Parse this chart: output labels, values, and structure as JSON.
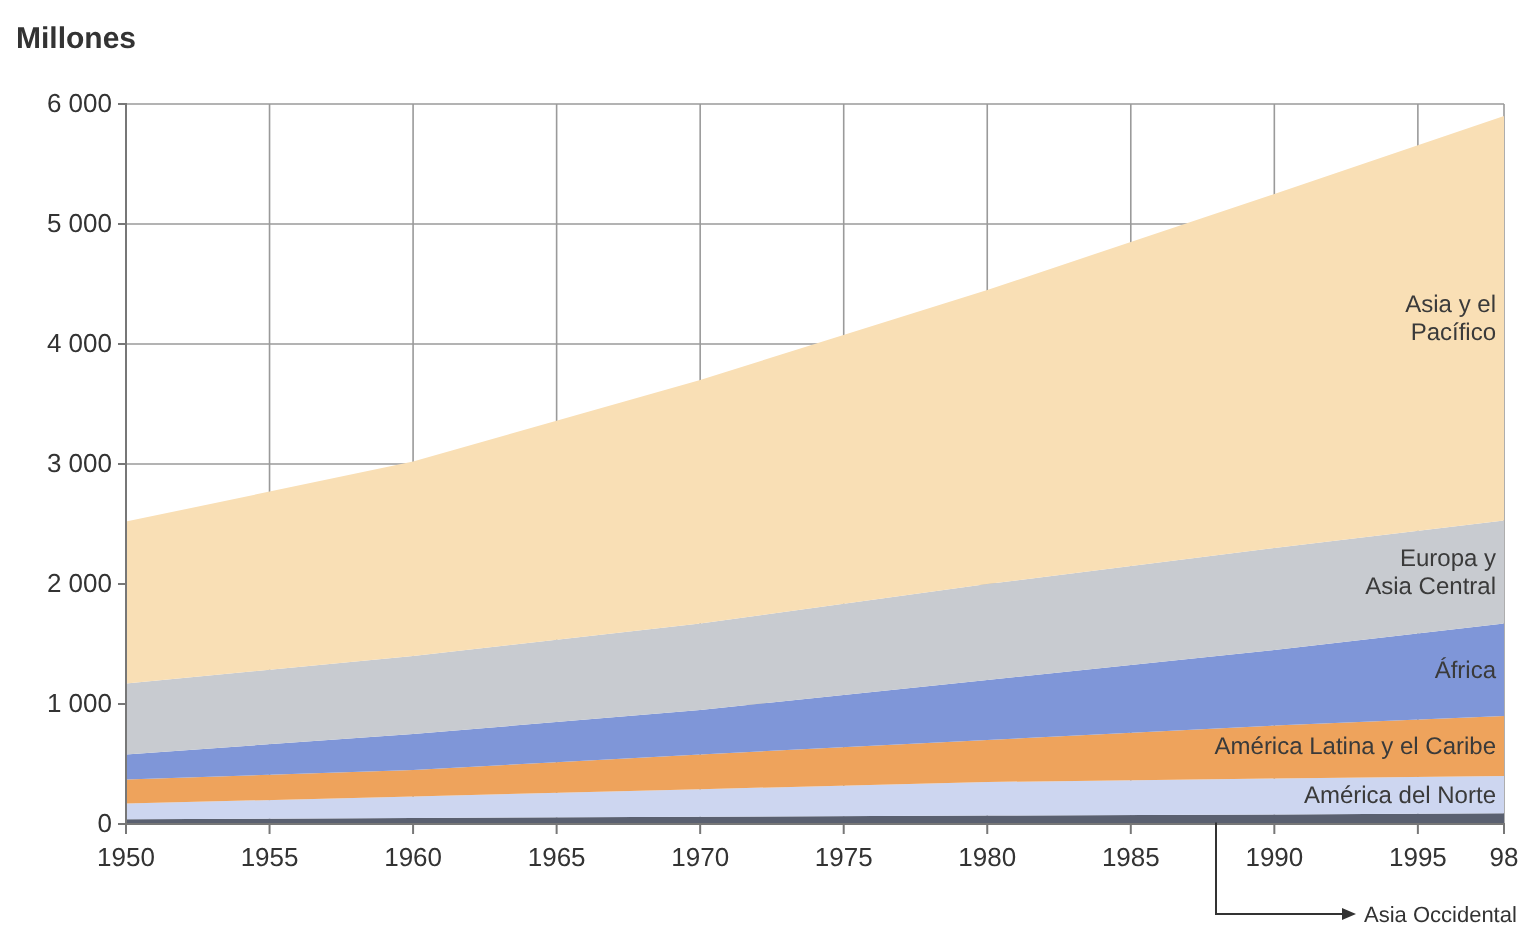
{
  "chart_data": {
    "type": "area",
    "stacked": true,
    "ylabel": "Millones",
    "x": [
      1950,
      1960,
      1970,
      1980,
      1990,
      1998
    ],
    "xlim": [
      1950,
      1998
    ],
    "xticks": [
      1950,
      1955,
      1960,
      1965,
      1970,
      1975,
      1980,
      1985,
      1990,
      1995,
      {
        "value": 1998,
        "label": "98"
      }
    ],
    "ylim": [
      0,
      6000
    ],
    "yticks": [
      {
        "value": 0,
        "label": "0"
      },
      {
        "value": 1000,
        "label": "1 000"
      },
      {
        "value": 2000,
        "label": "2 000"
      },
      {
        "value": 3000,
        "label": "3 000"
      },
      {
        "value": 4000,
        "label": "4 000"
      },
      {
        "value": 5000,
        "label": "5 000"
      },
      {
        "value": 6000,
        "label": "6 000"
      }
    ],
    "grid": true,
    "series": [
      {
        "name": "Asia Occidental",
        "color": "#5a6070",
        "values": [
          40,
          50,
          60,
          70,
          80,
          90
        ]
      },
      {
        "name": "América del Norte",
        "color": "#cdd6f0",
        "values": [
          130,
          180,
          230,
          280,
          300,
          310
        ]
      },
      {
        "name": "América Latina y el Caribe",
        "color": "#eea35c",
        "values": [
          200,
          220,
          290,
          350,
          440,
          500
        ]
      },
      {
        "name": "África",
        "color": "#7f96d8",
        "values": [
          210,
          300,
          370,
          500,
          630,
          770
        ]
      },
      {
        "name": "Europa y Asia Central",
        "color": "#c8cbd0",
        "values": [
          590,
          650,
          720,
          800,
          850,
          860
        ]
      },
      {
        "name": "Asia y el Pacífico",
        "color": "#f9dfb5",
        "values": [
          1350,
          1620,
          2030,
          2450,
          2950,
          3370
        ]
      }
    ]
  }
}
